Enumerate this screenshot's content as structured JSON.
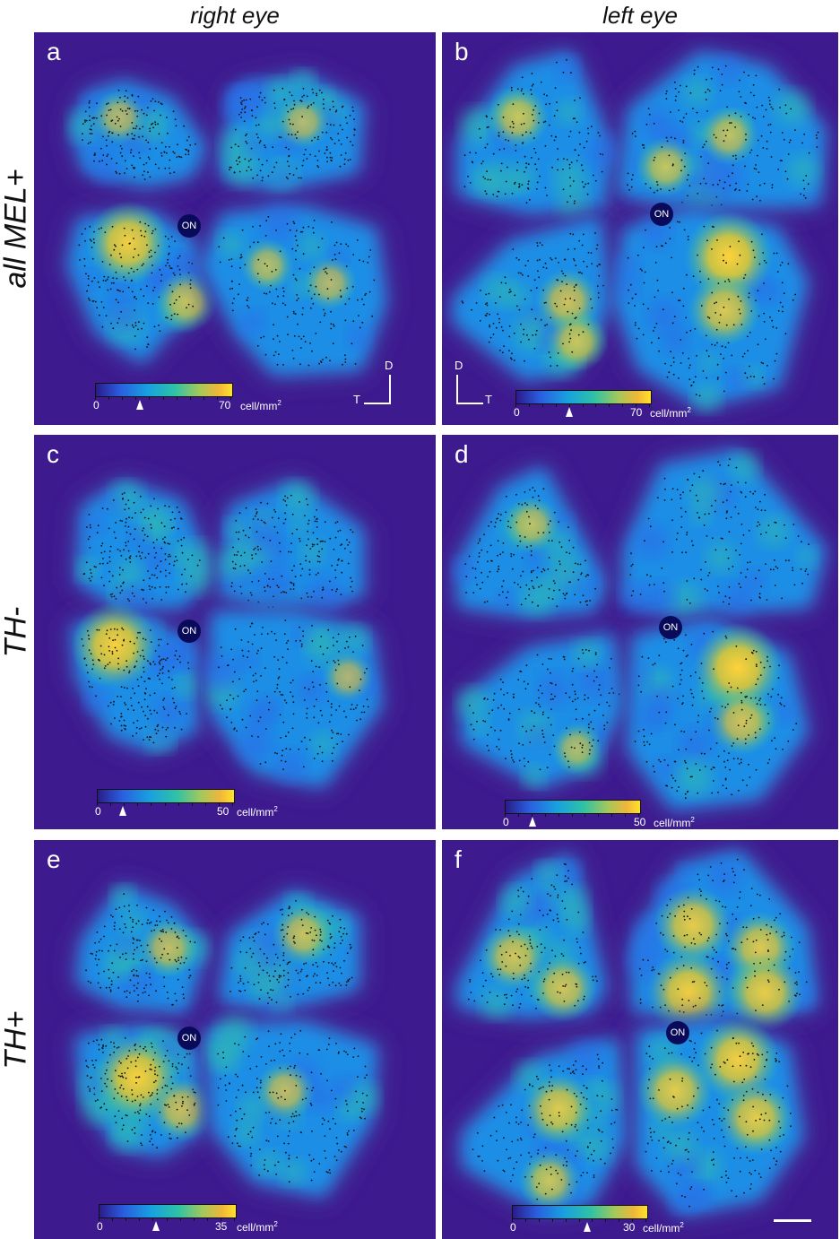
{
  "columns": {
    "right": "right eye",
    "left": "left eye"
  },
  "rows": {
    "row1": "all MEL+",
    "row2": "TH-",
    "row3": "TH+"
  },
  "panels": {
    "a": {
      "label": "a",
      "on": "ON",
      "cbar": {
        "min": "0",
        "max": "70",
        "unit": "cell/mm",
        "sup": "2"
      },
      "orient": {
        "d": "D",
        "t": "T"
      }
    },
    "b": {
      "label": "b",
      "on": "ON",
      "cbar": {
        "min": "0",
        "max": "70",
        "unit": "cell/mm",
        "sup": "2"
      },
      "orient": {
        "d": "D",
        "t": "T"
      }
    },
    "c": {
      "label": "c",
      "on": "ON",
      "cbar": {
        "min": "0",
        "max": "50",
        "unit": "cell/mm",
        "sup": "2"
      }
    },
    "d": {
      "label": "d",
      "on": "ON",
      "cbar": {
        "min": "0",
        "max": "50",
        "unit": "cell/mm",
        "sup": "2"
      }
    },
    "e": {
      "label": "e",
      "on": "ON",
      "cbar": {
        "min": "0",
        "max": "35",
        "unit": "cell/mm",
        "sup": "2"
      }
    },
    "f": {
      "label": "f",
      "on": "ON",
      "cbar": {
        "min": "0",
        "max": "30",
        "unit": "cell/mm",
        "sup": "2"
      }
    }
  },
  "colors": {
    "background": "#3d1a8e",
    "low": "#2a5fe0",
    "mid": "#2fc2a6",
    "high": "#ffe22a"
  }
}
